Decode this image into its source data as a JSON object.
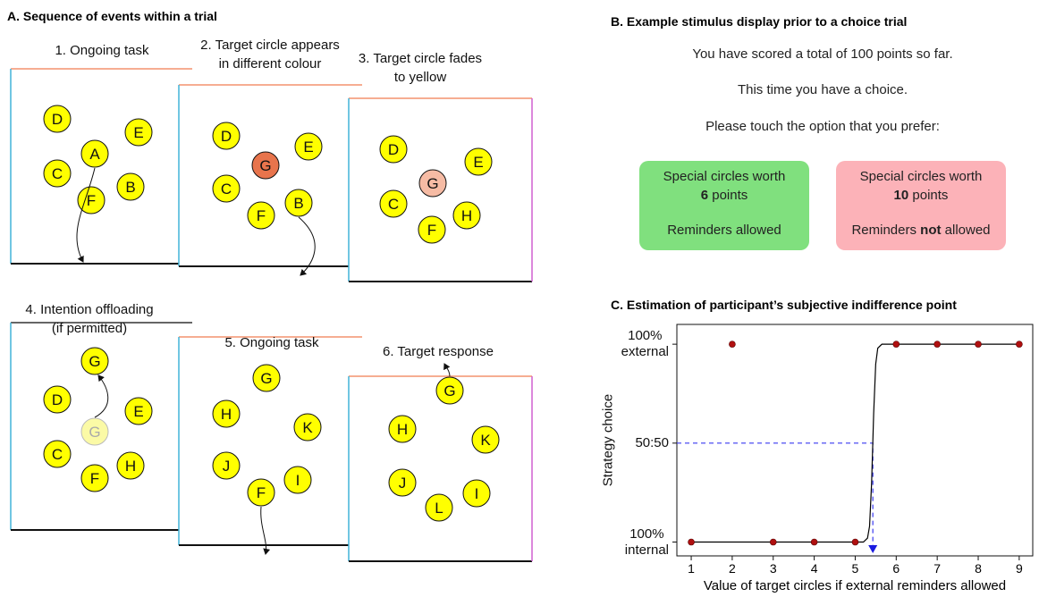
{
  "panel_a": {
    "title": "A. Sequence of events within a trial",
    "circle_color": "#ffff00",
    "steps": [
      {
        "title": "1. Ongoing task",
        "circles": [
          {
            "letter": "D"
          },
          {
            "letter": "E"
          },
          {
            "letter": "A"
          },
          {
            "letter": "C"
          },
          {
            "letter": "B"
          },
          {
            "letter": "F"
          }
        ]
      },
      {
        "title": "2. Target circle appears\nin different colour",
        "circles": [
          {
            "letter": "D"
          },
          {
            "letter": "E"
          },
          {
            "letter": "G",
            "color": "#e8744c"
          },
          {
            "letter": "C"
          },
          {
            "letter": "B"
          },
          {
            "letter": "F"
          }
        ]
      },
      {
        "title": "3. Target circle fades\nto yellow",
        "circles": [
          {
            "letter": "D"
          },
          {
            "letter": "E"
          },
          {
            "letter": "G",
            "color": "#f6bba4"
          },
          {
            "letter": "C"
          },
          {
            "letter": "H"
          },
          {
            "letter": "F"
          }
        ]
      },
      {
        "title": "4. Intention offloading\n(if permitted)",
        "circles": [
          {
            "letter": "G"
          },
          {
            "letter": "D"
          },
          {
            "letter": "E"
          },
          {
            "letter": "G",
            "color": "#fbfaa6"
          },
          {
            "letter": "C"
          },
          {
            "letter": "H"
          },
          {
            "letter": "F"
          }
        ]
      },
      {
        "title": "5. Ongoing task",
        "circles": [
          {
            "letter": "G"
          },
          {
            "letter": "H"
          },
          {
            "letter": "K"
          },
          {
            "letter": "J"
          },
          {
            "letter": "I"
          },
          {
            "letter": "F"
          }
        ]
      },
      {
        "title": "6. Target response",
        "circles": [
          {
            "letter": "G"
          },
          {
            "letter": "H"
          },
          {
            "letter": "K"
          },
          {
            "letter": "J"
          },
          {
            "letter": "I"
          },
          {
            "letter": "L"
          }
        ]
      }
    ]
  },
  "panel_b": {
    "title": "B. Example stimulus display prior to a choice trial",
    "lines": [
      "You have scored a total of 100 points so far.",
      "This time you have a choice.",
      "Please touch the option that you prefer:"
    ],
    "options": [
      {
        "color": "#80e07e",
        "heading": "Special circles worth",
        "points": "6",
        "unit": "points",
        "reminders": [
          {
            "text": "Reminders allowed"
          }
        ]
      },
      {
        "color": "#fcb2b8",
        "heading": "Special circles worth",
        "points": "10",
        "unit": "points",
        "reminders": [
          {
            "text": "Reminders"
          },
          {
            "text": "not",
            "bold": true
          },
          {
            "text": "allowed"
          }
        ]
      }
    ]
  },
  "chart_data": {
    "type": "scatter",
    "title": "C. Estimation of participant’s subjective indifference point",
    "x_label": "Value of target circles if external reminders allowed",
    "y_label": "Strategy choice",
    "x": [
      1,
      2,
      3,
      4,
      5,
      6,
      7,
      8,
      9
    ],
    "values": [
      0,
      100,
      0,
      0,
      0,
      100,
      100,
      100,
      100
    ],
    "color": "#b01010",
    "fit": {
      "color": "#000000",
      "x": [
        1,
        5.2,
        5.3,
        5.35,
        5.4,
        5.45,
        5.5,
        5.55,
        5.65,
        9
      ],
      "values": [
        0,
        0,
        2,
        8,
        30,
        65,
        90,
        98,
        100,
        100
      ]
    },
    "indifference_point": {
      "x": 5.43,
      "y": 50,
      "color": "#3a3af0"
    },
    "xlim": [
      0.65,
      9.33
    ],
    "ylim": [
      -7,
      110
    ],
    "xticks": [
      1,
      2,
      3,
      4,
      5,
      6,
      7,
      8,
      9
    ],
    "yticks": [
      {
        "value": 0,
        "label": "100%\ninternal"
      },
      {
        "value": 50,
        "label": "50:50"
      },
      {
        "value": 100,
        "label": "100%\nexternal"
      }
    ]
  }
}
